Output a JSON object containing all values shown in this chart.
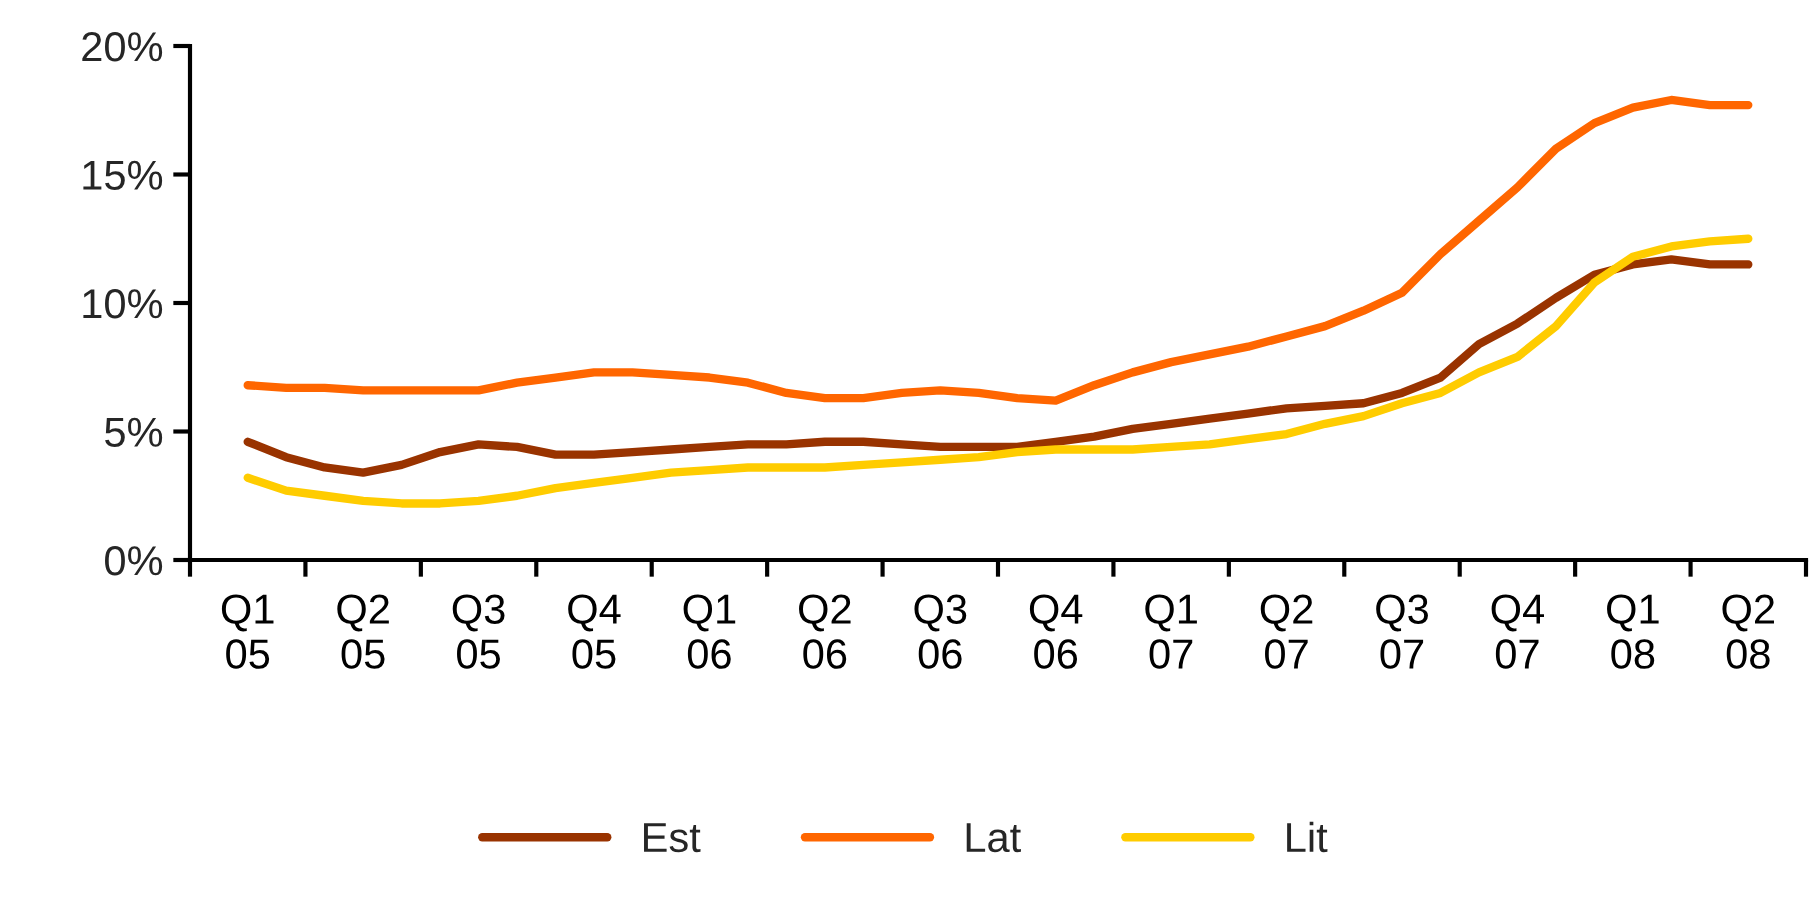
{
  "chart_data": {
    "type": "line",
    "categories": [
      "Q1\n05",
      null,
      null,
      "Q2\n05",
      null,
      null,
      "Q3\n05",
      null,
      null,
      "Q4\n05",
      null,
      null,
      "Q1\n06",
      null,
      null,
      "Q2\n06",
      null,
      null,
      "Q3\n06",
      null,
      null,
      "Q4\n06",
      null,
      null,
      "Q1\n07",
      null,
      null,
      "Q2\n07",
      null,
      null,
      "Q3\n07",
      null,
      null,
      "Q4\n07",
      null,
      null,
      "Q1\n08",
      null,
      null,
      "Q2\n08"
    ],
    "series": [
      {
        "name": "Est",
        "color": "#993300",
        "values": [
          4.6,
          4.0,
          3.6,
          3.4,
          3.7,
          4.2,
          4.5,
          4.4,
          4.1,
          4.1,
          4.2,
          4.3,
          4.4,
          4.5,
          4.5,
          4.6,
          4.6,
          4.5,
          4.4,
          4.4,
          4.4,
          4.6,
          4.8,
          5.1,
          5.3,
          5.5,
          5.7,
          5.9,
          6.0,
          6.1,
          6.5,
          7.1,
          8.4,
          9.2,
          10.2,
          11.1,
          11.5,
          11.7,
          11.5,
          11.5
        ]
      },
      {
        "name": "Lat",
        "color": "#ff6600",
        "values": [
          6.8,
          6.7,
          6.7,
          6.6,
          6.6,
          6.6,
          6.6,
          6.9,
          7.1,
          7.3,
          7.3,
          7.2,
          7.1,
          6.9,
          6.5,
          6.3,
          6.3,
          6.5,
          6.6,
          6.5,
          6.3,
          6.2,
          6.8,
          7.3,
          7.7,
          8.0,
          8.3,
          8.7,
          9.1,
          9.7,
          10.4,
          11.9,
          13.2,
          14.5,
          16.0,
          17.0,
          17.6,
          17.9,
          17.7,
          17.7
        ]
      },
      {
        "name": "Lit",
        "color": "#ffcc00",
        "values": [
          3.2,
          2.7,
          2.5,
          2.3,
          2.2,
          2.2,
          2.3,
          2.5,
          2.8,
          3.0,
          3.2,
          3.4,
          3.5,
          3.6,
          3.6,
          3.6,
          3.7,
          3.8,
          3.9,
          4.0,
          4.2,
          4.3,
          4.3,
          4.3,
          4.4,
          4.5,
          4.7,
          4.9,
          5.3,
          5.6,
          6.1,
          6.5,
          7.3,
          7.9,
          9.1,
          10.8,
          11.8,
          12.2,
          12.4,
          12.5
        ]
      }
    ],
    "ylim": [
      0,
      20
    ],
    "yticks": [
      {
        "value": 0,
        "label": "0%"
      },
      {
        "value": 5,
        "label": "5%"
      },
      {
        "value": 10,
        "label": "10%"
      },
      {
        "value": 15,
        "label": "15%"
      },
      {
        "value": 20,
        "label": "20%"
      }
    ],
    "grid": false,
    "legend": "bottom",
    "marker": "none",
    "line_style": "solid"
  }
}
